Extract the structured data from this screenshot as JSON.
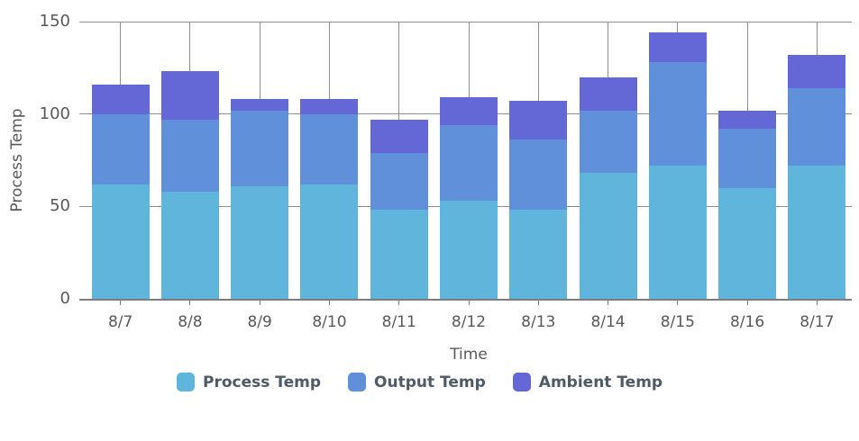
{
  "chart_data": {
    "type": "bar",
    "stacked": true,
    "title": "",
    "xlabel": "Time",
    "ylabel": "Process Temp",
    "categories": [
      "8/7",
      "8/8",
      "8/9",
      "8/10",
      "8/11",
      "8/12",
      "8/13",
      "8/14",
      "8/15",
      "8/16",
      "8/17"
    ],
    "series": [
      {
        "name": "Process Temp",
        "color": "#5fb5dc",
        "values": [
          62,
          58,
          61,
          62,
          48,
          53,
          48,
          68,
          72,
          60,
          72
        ]
      },
      {
        "name": "Output Temp",
        "color": "#6090da",
        "values": [
          38,
          39,
          41,
          38,
          31,
          41,
          38,
          34,
          56,
          32,
          42
        ]
      },
      {
        "name": "Ambient Temp",
        "color": "#6468d6",
        "values": [
          16,
          26,
          6,
          8,
          18,
          15,
          21,
          18,
          16,
          10,
          18
        ]
      }
    ],
    "stack_totals": [
      116,
      123,
      108,
      108,
      97,
      109,
      107,
      120,
      144,
      102,
      132
    ],
    "ylim": [
      0,
      150
    ],
    "yticks": [
      0,
      50,
      100,
      150
    ],
    "grid": true,
    "legend_position": "bottom",
    "grid_color": "#8f8f8f",
    "axis_text_color": "#595959"
  }
}
